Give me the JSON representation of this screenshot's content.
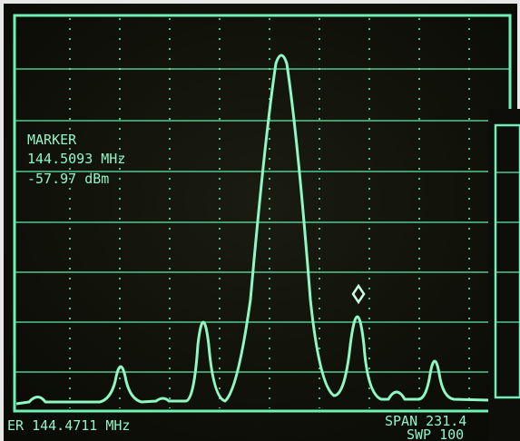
{
  "marker": {
    "title": "MARKER",
    "frequency": "144.5093 MHz",
    "level": "-57.97 dBm"
  },
  "footer": {
    "center": "ER 144.4711 MHz",
    "span": "SPAN 231.4",
    "sweep": "SWP 100"
  }
}
